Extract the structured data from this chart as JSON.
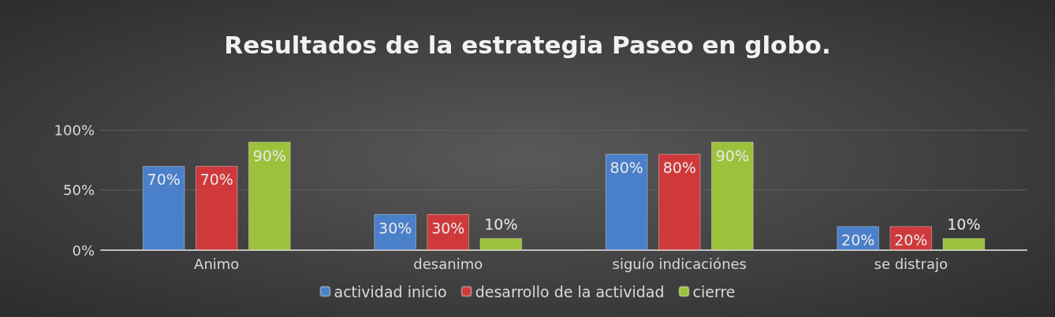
{
  "chart_data": {
    "type": "bar",
    "title": "Resultados de la estrategia Paseo en globo.",
    "categories": [
      "Animo",
      "desanimo",
      "siguío indicaciónes",
      "se distrajo"
    ],
    "series": [
      {
        "name": "actividad inicio",
        "color": "#4a7fc9",
        "values": [
          70,
          30,
          80,
          20
        ],
        "value_labels": [
          "70%",
          "30%",
          "80%",
          "20%"
        ]
      },
      {
        "name": "desarrollo de la actividad",
        "color": "#d0393b",
        "values": [
          70,
          30,
          80,
          20
        ],
        "value_labels": [
          "70%",
          "30%",
          "80%",
          "20%"
        ]
      },
      {
        "name": "cierre",
        "color": "#9bc23a",
        "values": [
          90,
          10,
          90,
          10
        ],
        "value_labels": [
          "90%",
          "10%",
          "90%",
          "10%"
        ]
      }
    ],
    "ylim": [
      0,
      100
    ],
    "yticks": [
      {
        "value": 0,
        "label": "0%"
      },
      {
        "value": 50,
        "label": "50%"
      },
      {
        "value": 100,
        "label": "100%"
      }
    ],
    "grid": true,
    "legend": "bottom"
  }
}
